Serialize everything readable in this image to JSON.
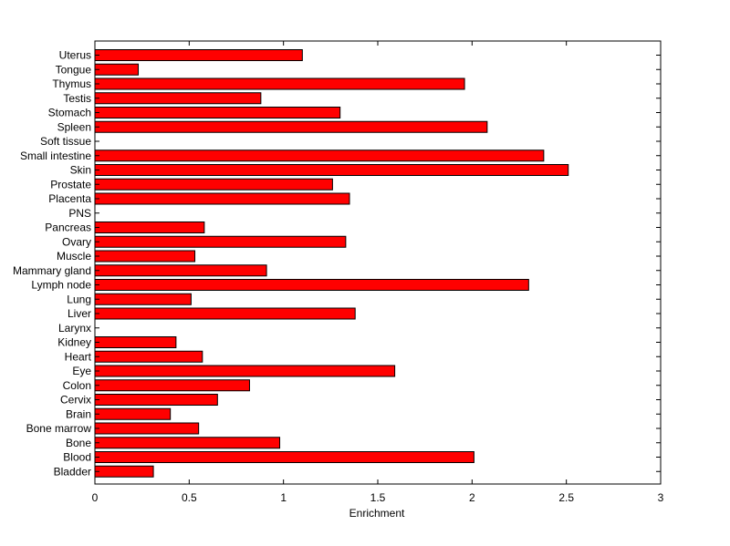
{
  "chart_data": {
    "type": "bar",
    "orientation": "horizontal",
    "title": "",
    "xlabel": "Enrichment",
    "ylabel": "",
    "xlim": [
      0,
      3
    ],
    "xticks": [
      0,
      0.5,
      1,
      1.5,
      2,
      2.5,
      3
    ],
    "xtick_labels": [
      "0",
      "0.5",
      "1",
      "1.5",
      "2",
      "2.5",
      "3"
    ],
    "grid": false,
    "legend": "none",
    "bar_color": "#ff0000",
    "edge_color": "#000000",
    "categories": [
      "Uterus",
      "Tongue",
      "Thymus",
      "Testis",
      "Stomach",
      "Spleen",
      "Soft tissue",
      "Small intestine",
      "Skin",
      "Prostate",
      "Placenta",
      "PNS",
      "Pancreas",
      "Ovary",
      "Muscle",
      "Mammary gland",
      "Lymph node",
      "Lung",
      "Liver",
      "Larynx",
      "Kidney",
      "Heart",
      "Eye",
      "Colon",
      "Cervix",
      "Brain",
      "Bone marrow",
      "Bone",
      "Blood",
      "Bladder"
    ],
    "values": [
      1.1,
      0.23,
      1.96,
      0.88,
      1.3,
      2.08,
      0,
      2.38,
      2.51,
      1.26,
      1.35,
      0,
      0.58,
      1.33,
      0.53,
      0.91,
      2.3,
      0.51,
      1.38,
      0,
      0.43,
      0.57,
      1.59,
      0.82,
      0.65,
      0.4,
      0.55,
      0.98,
      2.01,
      0.31
    ]
  }
}
